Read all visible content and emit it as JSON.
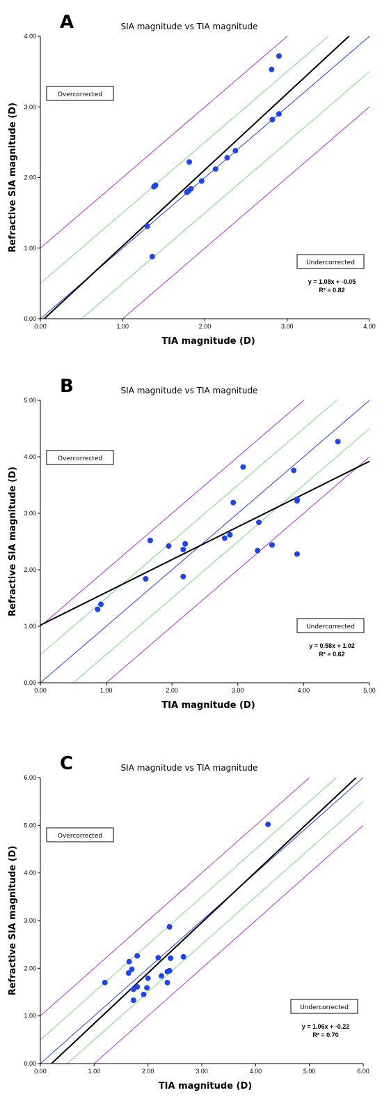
{
  "chart_data": [
    {
      "type": "scatter",
      "panel_label": "A",
      "title": "SIA magnitude vs TIA magnitude",
      "xlabel": "TIA magnitude (D)",
      "ylabel": "Refractive SIA magnitude (D)",
      "xlim": [
        0,
        4
      ],
      "ylim": [
        0,
        4
      ],
      "x_ticks": [
        "0.00",
        "1.00",
        "2.00",
        "3.00",
        "4.00"
      ],
      "y_ticks": [
        "0.00",
        "1.00",
        "2.00",
        "3.00",
        "4.00"
      ],
      "overcorrected_label": "Overcorrected",
      "undercorrected_label": "Undercorrected",
      "equation": "y = 1.08x + -0.05",
      "r2": "R² = 0.82",
      "regression": {
        "slope": 1.08,
        "intercept": -0.05
      },
      "reference_lines": {
        "identity_color": "#2546d8",
        "inner_offset": 0.5,
        "inner_color": "#7fd67f",
        "outer_offset": 1.0,
        "outer_color": "#b233d6"
      },
      "regression_color": "#000000",
      "point_color": "#1f45e6",
      "points": [
        {
          "x": 2.81,
          "y": 3.53
        },
        {
          "x": 2.9,
          "y": 3.72
        },
        {
          "x": 2.82,
          "y": 2.82
        },
        {
          "x": 2.9,
          "y": 2.9
        },
        {
          "x": 2.37,
          "y": 2.38
        },
        {
          "x": 2.27,
          "y": 2.28
        },
        {
          "x": 2.13,
          "y": 2.12
        },
        {
          "x": 1.96,
          "y": 1.95
        },
        {
          "x": 1.81,
          "y": 2.22
        },
        {
          "x": 1.83,
          "y": 1.84
        },
        {
          "x": 1.8,
          "y": 1.81
        },
        {
          "x": 1.78,
          "y": 1.79
        },
        {
          "x": 1.4,
          "y": 1.89
        },
        {
          "x": 1.38,
          "y": 1.87
        },
        {
          "x": 1.3,
          "y": 1.31
        },
        {
          "x": 1.36,
          "y": 0.88
        }
      ]
    },
    {
      "type": "scatter",
      "panel_label": "B",
      "title": "SIA magnitude vs TIA magnitude",
      "xlabel": "TIA magnitude (D)",
      "ylabel": "Refractive SIA magnitude (D)",
      "xlim": [
        0,
        5
      ],
      "ylim": [
        0,
        5
      ],
      "x_ticks": [
        "0.00",
        "1.00",
        "2.00",
        "3.00",
        "4.00",
        "5.00"
      ],
      "y_ticks": [
        "0.00",
        "1.00",
        "2.00",
        "3.00",
        "4.00",
        "5.00"
      ],
      "overcorrected_label": "Overcorrected",
      "undercorrected_label": "Undercorrected",
      "equation": "y = 0.58x + 1.02",
      "r2": "R² = 0.62",
      "regression": {
        "slope": 0.58,
        "intercept": 1.02
      },
      "reference_lines": {
        "identity_color": "#2546d8",
        "inner_offset": 0.5,
        "inner_color": "#7fd67f",
        "outer_offset": 1.0,
        "outer_color": "#b233d6"
      },
      "regression_color": "#000000",
      "point_color": "#1f45e6",
      "points": [
        {
          "x": 0.87,
          "y": 1.3
        },
        {
          "x": 0.92,
          "y": 1.39
        },
        {
          "x": 1.6,
          "y": 1.84
        },
        {
          "x": 1.67,
          "y": 2.52
        },
        {
          "x": 1.95,
          "y": 2.42
        },
        {
          "x": 2.17,
          "y": 2.36
        },
        {
          "x": 2.2,
          "y": 2.46
        },
        {
          "x": 2.17,
          "y": 1.88
        },
        {
          "x": 2.8,
          "y": 2.56
        },
        {
          "x": 2.88,
          "y": 2.62
        },
        {
          "x": 2.93,
          "y": 3.19
        },
        {
          "x": 3.08,
          "y": 3.82
        },
        {
          "x": 3.3,
          "y": 2.34
        },
        {
          "x": 3.32,
          "y": 2.84
        },
        {
          "x": 3.52,
          "y": 2.44
        },
        {
          "x": 3.85,
          "y": 3.76
        },
        {
          "x": 3.9,
          "y": 3.22
        },
        {
          "x": 3.9,
          "y": 3.25
        },
        {
          "x": 3.9,
          "y": 2.28
        },
        {
          "x": 4.52,
          "y": 4.27
        }
      ]
    },
    {
      "type": "scatter",
      "panel_label": "C",
      "title": "SIA magnitude vs TIA magnitude",
      "xlabel": "TIA magnitude (D)",
      "ylabel": "Refractive SIA magnitude (D)",
      "xlim": [
        0,
        6
      ],
      "ylim": [
        0,
        6
      ],
      "x_ticks": [
        "0.00",
        "1.00",
        "2.00",
        "3.00",
        "4.00",
        "5.00",
        "6.00"
      ],
      "y_ticks": [
        "0.00",
        "1.00",
        "2.00",
        "3.00",
        "4.00",
        "5.00",
        "6.00"
      ],
      "overcorrected_label": "Overcorrected",
      "undercorrected_label": "Undercorrected",
      "equation": "y = 1.06x + -0.22",
      "r2": "R² = 0.70",
      "regression": {
        "slope": 1.06,
        "intercept": -0.22
      },
      "reference_lines": {
        "identity_color": "#2546d8",
        "inner_offset": 0.5,
        "inner_color": "#7fd67f",
        "outer_offset": 1.0,
        "outer_color": "#b233d6"
      },
      "regression_color": "#000000",
      "point_color": "#1f45e6",
      "points": [
        {
          "x": 1.2,
          "y": 1.7
        },
        {
          "x": 1.65,
          "y": 2.14
        },
        {
          "x": 1.7,
          "y": 1.98
        },
        {
          "x": 1.64,
          "y": 1.9
        },
        {
          "x": 1.8,
          "y": 2.26
        },
        {
          "x": 1.73,
          "y": 1.56
        },
        {
          "x": 1.8,
          "y": 1.61
        },
        {
          "x": 1.73,
          "y": 1.33
        },
        {
          "x": 1.92,
          "y": 1.45
        },
        {
          "x": 1.98,
          "y": 1.59
        },
        {
          "x": 2.0,
          "y": 1.79
        },
        {
          "x": 2.19,
          "y": 2.22
        },
        {
          "x": 2.25,
          "y": 1.84
        },
        {
          "x": 2.36,
          "y": 1.93
        },
        {
          "x": 2.4,
          "y": 1.95
        },
        {
          "x": 2.36,
          "y": 1.7
        },
        {
          "x": 2.4,
          "y": 2.87
        },
        {
          "x": 2.42,
          "y": 2.21
        },
        {
          "x": 2.66,
          "y": 2.24
        },
        {
          "x": 4.23,
          "y": 5.02
        }
      ]
    }
  ]
}
